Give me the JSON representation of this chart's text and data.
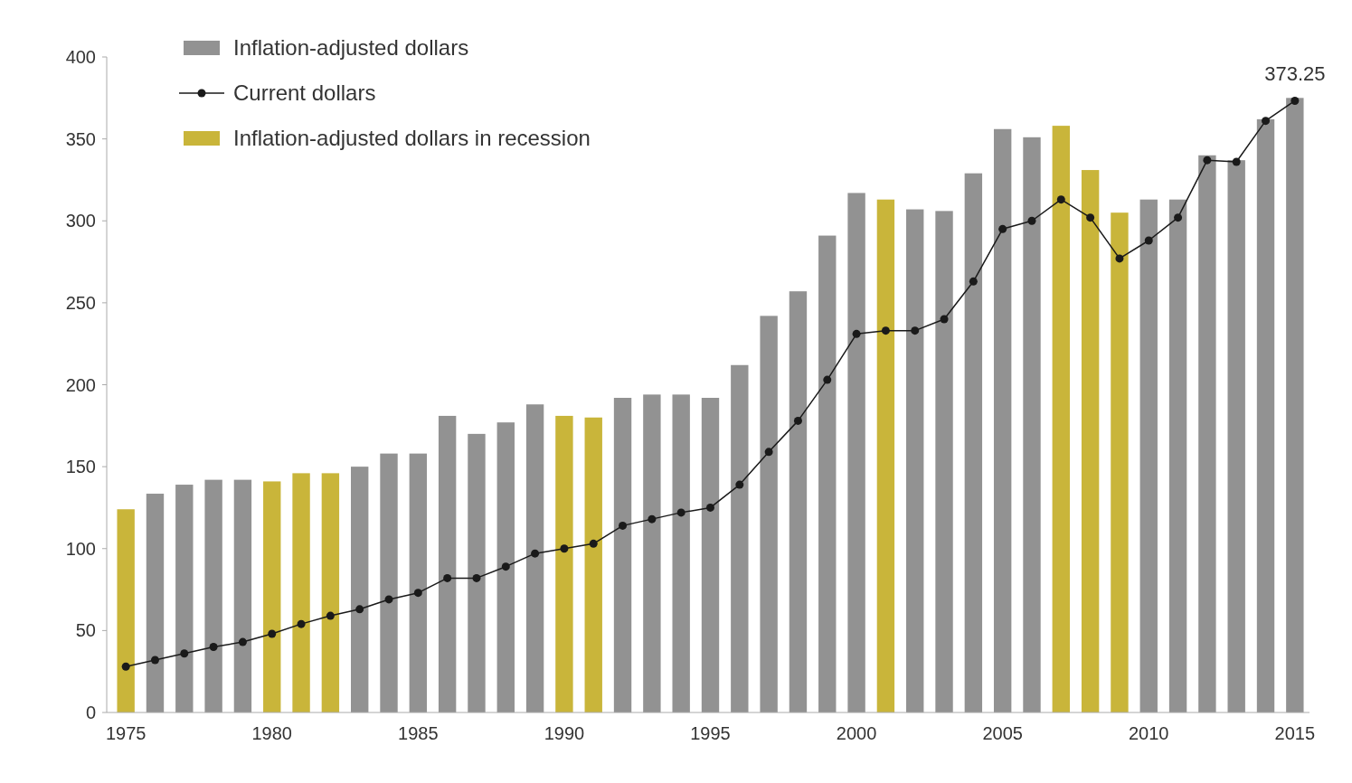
{
  "chart_data": {
    "type": "bar",
    "categories": [
      "1975",
      null,
      null,
      null,
      null,
      "1980",
      null,
      null,
      null,
      null,
      "1985",
      null,
      null,
      null,
      null,
      "1990",
      null,
      null,
      null,
      null,
      "1995",
      null,
      null,
      null,
      null,
      "2000",
      null,
      null,
      null,
      null,
      "2005",
      null,
      null,
      null,
      null,
      "2010",
      null,
      null,
      null,
      null,
      "2015"
    ],
    "series": [
      {
        "name": "Inflation-adjusted dollars",
        "color": "#929292",
        "values": [
          null,
          133.5,
          139,
          142,
          142,
          null,
          null,
          null,
          150,
          158,
          158,
          181,
          170,
          177,
          188,
          null,
          null,
          192,
          194,
          194,
          192,
          212,
          242,
          257,
          291,
          317,
          null,
          307,
          306,
          329,
          356,
          351,
          null,
          null,
          null,
          313,
          313,
          340,
          337,
          362,
          375
        ]
      },
      {
        "name": "Current dollars",
        "type": "line",
        "color": "#1a1a1a",
        "marker": "circle",
        "values": [
          28,
          32,
          36,
          40,
          43,
          48,
          54,
          59,
          63,
          69,
          73,
          82,
          82,
          89,
          97,
          100,
          103,
          114,
          118,
          122,
          125,
          139,
          159,
          178,
          203,
          231,
          233,
          233,
          240,
          263,
          295,
          300,
          313,
          302,
          277,
          288,
          302,
          337,
          336,
          361,
          373.25
        ]
      },
      {
        "name": "Inflation-adjusted dollars in recession",
        "color": "#c9b53a",
        "values": [
          124,
          null,
          null,
          null,
          null,
          141,
          146,
          146,
          null,
          null,
          null,
          null,
          null,
          null,
          null,
          181,
          180,
          null,
          null,
          null,
          null,
          null,
          null,
          null,
          null,
          null,
          313,
          null,
          null,
          null,
          null,
          null,
          358,
          331,
          305,
          null,
          null,
          null,
          null,
          null,
          null
        ]
      }
    ],
    "ylim": [
      0,
      400
    ],
    "yticks": [
      0,
      50,
      100,
      150,
      200,
      250,
      300,
      350,
      400
    ],
    "legend": "top left",
    "annotations": [
      {
        "text": "373.25",
        "x": "2015",
        "y": 373.25
      }
    ]
  }
}
